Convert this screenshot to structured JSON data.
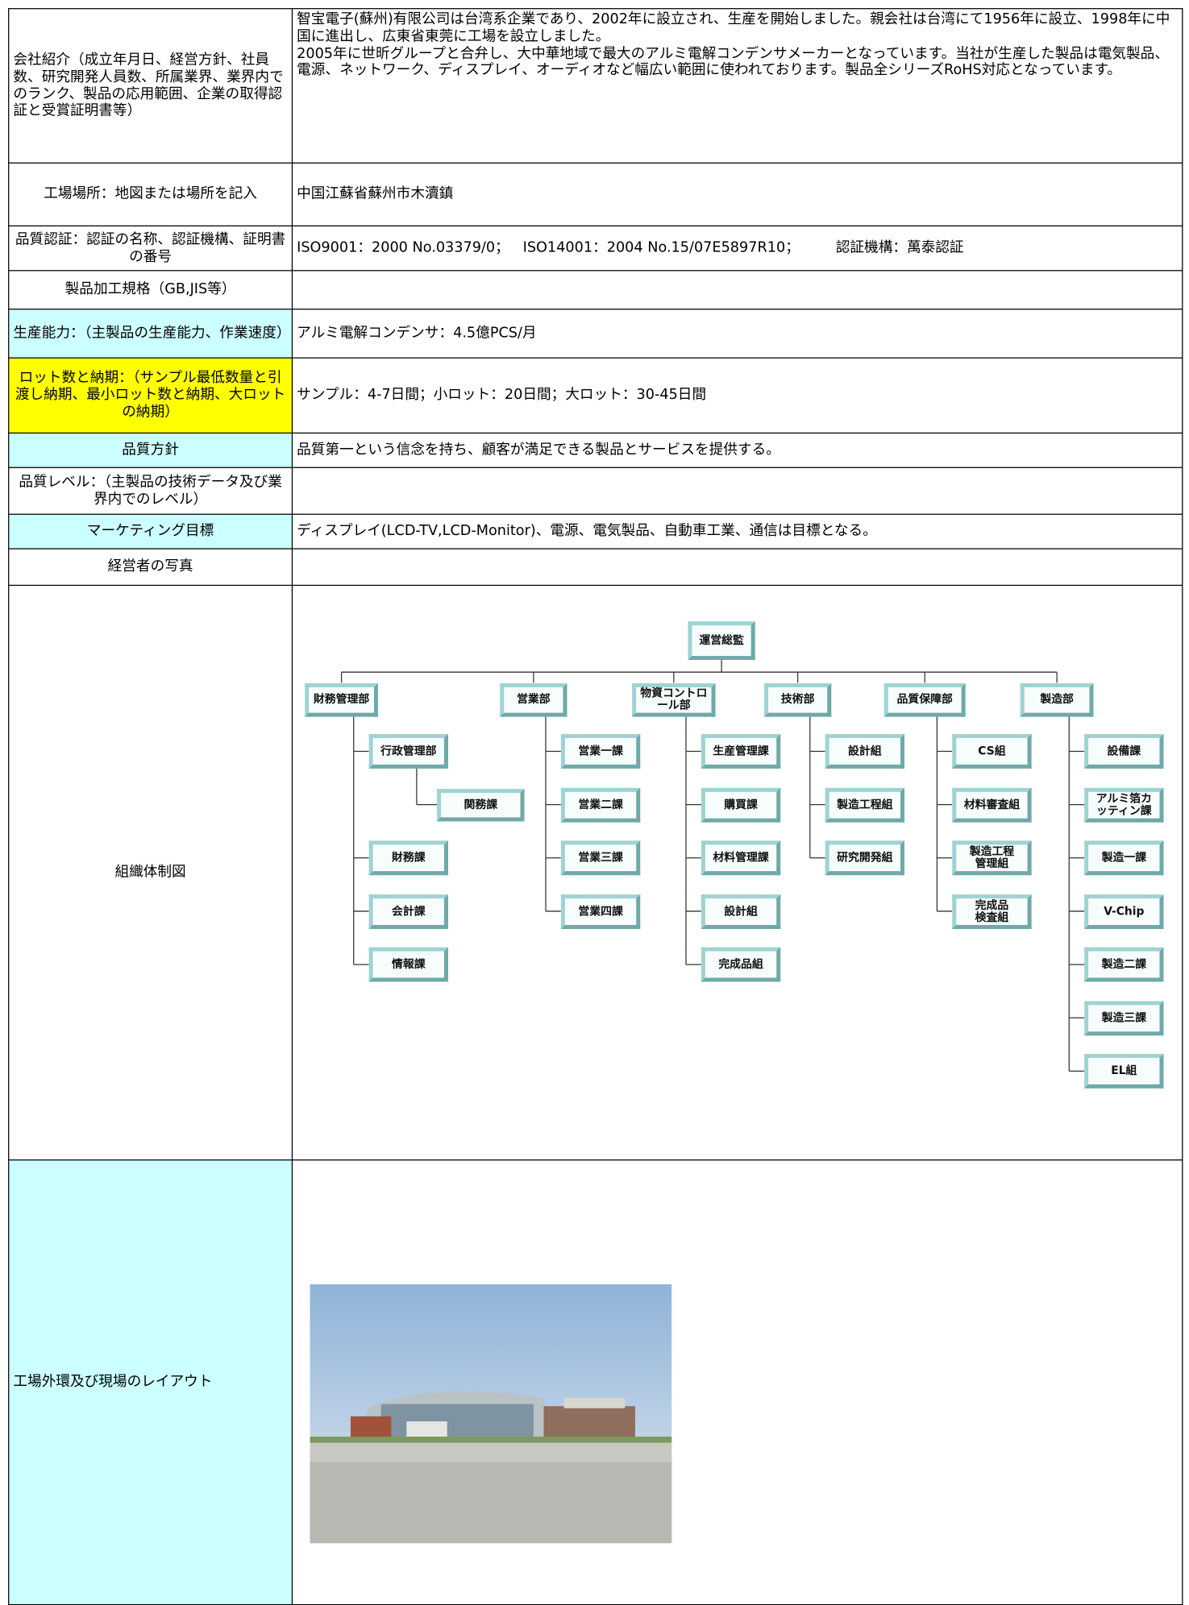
{
  "table": {
    "rows": [
      {
        "label": "会社紹介（成立年月日、経営方針、社員数、研究開発人員数、所属業界、業界内でのランク、製品の応用範囲、企業の取得認証と受賞証明書等）",
        "value": "智宝電子(蘇州)有限公司は台湾系企業であり、2002年に設立され、生産を開始しました。親会社は台湾にて1956年に設立、1998年に中国に進出し、広東省東莞に工場を設立しました。\n2005年に世昕グループと合弁し、大中華地域で最大のアルミ電解コンデンサメーカーとなっています。当社が生産した製品は電気製品、電源、ネットワーク、ディスプレイ、オーディオなど幅広い範囲に使われております。製品全シリーズRoHS対応となっています。"
      },
      {
        "label": "工場場所：地図または場所を記入",
        "value": "中国江蘇省蘇州市木瀆鎮"
      },
      {
        "label": "品質認証：認証の名称、認証機構、証明書の番号",
        "value": "ISO9001：2000 No.03379/0；   ISO14001：2004 No.15/07E5897R10；        認証機構：萬泰認証"
      },
      {
        "label": "製品加工規格（GB,JIS等）"
      },
      {
        "label": "生産能力：（主製品の生産能力、作業速度）",
        "value": "アルミ電解コンデンサ：4.5億PCS/月"
      },
      {
        "label": "ロット数と納期：（サンプル最低数量と引渡し納期、最小ロット数と納期、大ロットの納期）",
        "value": "サンプル：4-7日間；小ロット：20日間；大ロット：30-45日間"
      },
      {
        "label": "品質方針",
        "value": "品質第一という信念を持ち、顧客が満足できる製品とサービスを提供する。"
      },
      {
        "label": "品質レベル：（主製品の技術データ及び業界内でのレベル）"
      },
      {
        "label": "マーケティング目標",
        "value": "ディスプレイ(LCD-TV,LCD-Monitor)、電源、電気製品、自動車工業、通信は目標となる。"
      },
      {
        "label": "経営者の写真"
      },
      {
        "label": "組織体制図"
      },
      {
        "label": "工場外環及び現場のレイアウト"
      }
    ]
  },
  "org_chart": {
    "root": "運営総監",
    "departments": [
      {
        "name": "財務管理部",
        "children": [
          {
            "name": "行政管理部",
            "children": [
              {
                "name": "関務課"
              }
            ]
          },
          {
            "name": "財務課"
          },
          {
            "name": "会計課"
          },
          {
            "name": "情報課"
          }
        ]
      },
      {
        "name": "営業部",
        "children": [
          {
            "name": "営業一課"
          },
          {
            "name": "営業二課"
          },
          {
            "name": "営業三課"
          },
          {
            "name": "営業四課"
          }
        ]
      },
      {
        "name": "物資コントロ\nール部",
        "children": [
          {
            "name": "生産管理課"
          },
          {
            "name": "購買課"
          },
          {
            "name": "材料管理課"
          },
          {
            "name": "設計組"
          },
          {
            "name": "完成品組"
          }
        ]
      },
      {
        "name": "技術部",
        "children": [
          {
            "name": "設計組"
          },
          {
            "name": "製造工程組"
          },
          {
            "name": "研究開発組"
          }
        ]
      },
      {
        "name": "品質保障部",
        "children": [
          {
            "name": "CS組"
          },
          {
            "name": "材料審査組"
          },
          {
            "name": "製造工程\n管理組"
          },
          {
            "name": "完成品\n検査組"
          }
        ]
      },
      {
        "name": "製造部",
        "children": [
          {
            "name": "設備課"
          },
          {
            "name": "アルミ箔カ\nッティン課"
          },
          {
            "name": "製造一課"
          },
          {
            "name": "V-Chip"
          },
          {
            "name": "製造二課"
          },
          {
            "name": "製造三課"
          },
          {
            "name": "EL組"
          }
        ]
      }
    ]
  }
}
